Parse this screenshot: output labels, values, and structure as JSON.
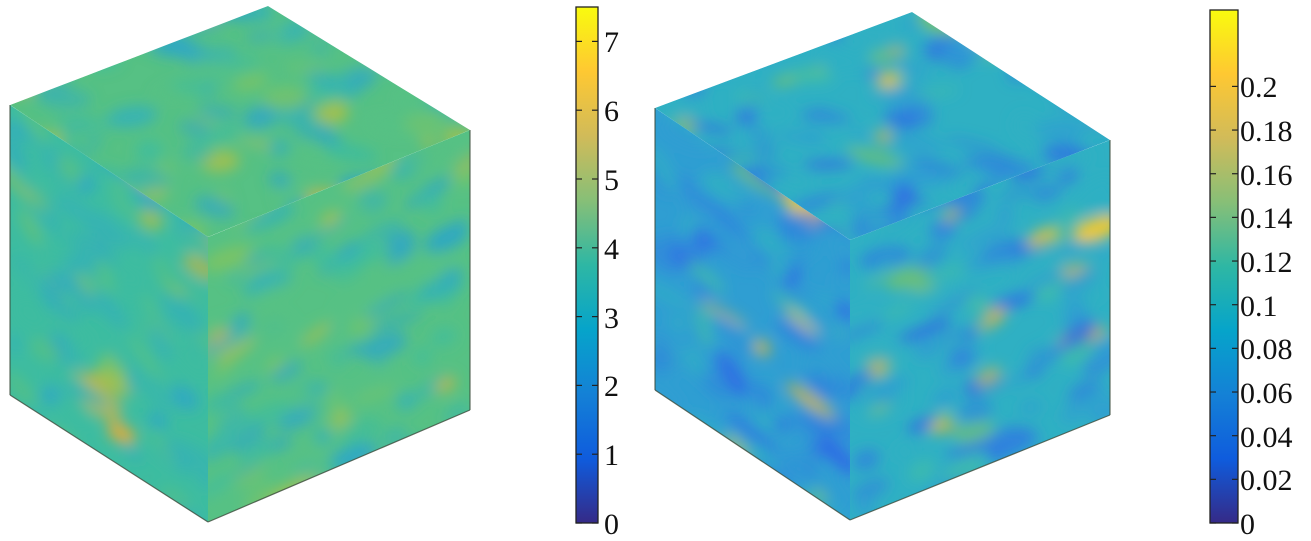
{
  "panels": [
    {
      "name": "left",
      "colorbar": {
        "min": 0,
        "max": 7.5,
        "ticks": [
          {
            "value": 0,
            "label": "0"
          },
          {
            "value": 1,
            "label": "1"
          },
          {
            "value": 2,
            "label": "2"
          },
          {
            "value": 3,
            "label": "3"
          },
          {
            "value": 4,
            "label": "4"
          },
          {
            "value": 5,
            "label": "5"
          },
          {
            "value": 6,
            "label": "6"
          },
          {
            "value": 7,
            "label": "7"
          }
        ]
      },
      "field_palette": [
        "#2ea7c6",
        "#35b2b5",
        "#3dbca0",
        "#56c184",
        "#7cc463",
        "#a7c04a",
        "#cfb53a",
        "#e7ab2f"
      ]
    },
    {
      "name": "right",
      "colorbar": {
        "min": 0,
        "max": 0.235,
        "ticks": [
          {
            "value": 0,
            "label": "0"
          },
          {
            "value": 0.02,
            "label": "0.02"
          },
          {
            "value": 0.04,
            "label": "0.04"
          },
          {
            "value": 0.06,
            "label": "0.06"
          },
          {
            "value": 0.08,
            "label": "0.08"
          },
          {
            "value": 0.1,
            "label": "0.1"
          },
          {
            "value": 0.12,
            "label": "0.12"
          },
          {
            "value": 0.14,
            "label": "0.14"
          },
          {
            "value": 0.16,
            "label": "0.16"
          },
          {
            "value": 0.18,
            "label": "0.18"
          },
          {
            "value": 0.2,
            "label": "0.2"
          }
        ]
      },
      "field_palette": [
        "#2f69e6",
        "#2f84dd",
        "#2f9ed2",
        "#2fb0c3",
        "#40bda8",
        "#7cc463",
        "#d3b53a",
        "#f3c92b"
      ]
    }
  ],
  "parula_colors": [
    "#352a87",
    "#0f5cdd",
    "#1481d6",
    "#06a4ca",
    "#2eb7a4",
    "#87bf77",
    "#d1bb59",
    "#fec832",
    "#f9fb0e"
  ]
}
